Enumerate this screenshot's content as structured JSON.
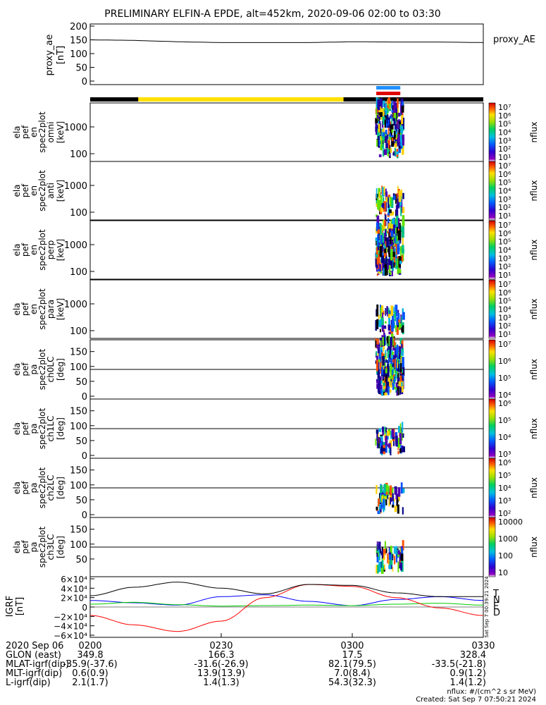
{
  "title": "PRELIMINARY ELFIN-A EPDE, alt=452km, 2020-09-06 02:00 to 03:30",
  "colors": {
    "bar_black": "#000000",
    "bar_yellow": "#ffe000",
    "bar_blue": "#1e90ff",
    "bar_red": "#e00000",
    "grf_N": "#0000ff",
    "grf_E": "#00cc00",
    "grf_D": "#ff0000",
    "grf_T": "#000000"
  },
  "ae_panel": {
    "ylabel": [
      "proxy_ae",
      "[nT]"
    ],
    "yticks": [
      "200",
      "150",
      "100",
      "50",
      "0"
    ],
    "legend": "proxy_AE"
  },
  "colorbars": {
    "label": "nflux",
    "energy_ticks": [
      "10⁷",
      "10⁶",
      "10⁵",
      "10⁴",
      "10³",
      "10²",
      "10¹"
    ],
    "ch0_ticks": [
      "10⁷",
      "10⁶",
      "10⁵",
      "10⁴"
    ],
    "ch1_ticks": [
      "10⁶",
      "10⁵",
      "10⁴",
      "10³"
    ],
    "ch2_ticks": [
      "10⁶",
      "10⁵",
      "10⁴",
      "10³",
      "10²"
    ],
    "ch3_ticks": [
      "10000",
      "1000",
      "100",
      "10"
    ]
  },
  "spec_panels": [
    {
      "ylabel": [
        "ela",
        "pef",
        "en",
        "spec2plot",
        "omni",
        "[keV]"
      ],
      "yticks": [
        "1000",
        "100"
      ]
    },
    {
      "ylabel": [
        "ela",
        "pef",
        "en",
        "spec2plot",
        "anti",
        "[keV]"
      ],
      "yticks": [
        "1000",
        "100"
      ]
    },
    {
      "ylabel": [
        "ela",
        "pef",
        "en",
        "spec2plot",
        "perp",
        "[keV]"
      ],
      "yticks": [
        "1000",
        "100"
      ]
    },
    {
      "ylabel": [
        "ela",
        "pef",
        "en",
        "spec2plot",
        "para",
        "[keV]"
      ],
      "yticks": [
        "1000",
        "100"
      ]
    }
  ],
  "pa_panels": [
    {
      "ylabel": [
        "ela",
        "pef",
        "pa",
        "spec2plot",
        "ch0LC",
        "[deg]"
      ],
      "yticks": [
        "150",
        "100",
        "50",
        "0"
      ]
    },
    {
      "ylabel": [
        "ela",
        "pef",
        "pa",
        "spec2plot",
        "ch1LC",
        "[deg]"
      ],
      "yticks": [
        "150",
        "100",
        "50",
        "0"
      ]
    },
    {
      "ylabel": [
        "ela",
        "pef",
        "pa",
        "spec2plot",
        "ch2LC",
        "[deg]"
      ],
      "yticks": [
        "150",
        "100",
        "50",
        "0"
      ]
    },
    {
      "ylabel": [
        "ela",
        "pef",
        "pa",
        "spec2plot",
        "ch3LC",
        "[deg]"
      ],
      "yticks": [
        "150",
        "100",
        "50"
      ]
    }
  ],
  "grf_panel": {
    "ylabel": [
      "IGRF",
      "[nT]"
    ],
    "yticks": [
      "6×10⁴",
      "4×10⁴",
      "2×10⁴",
      "0",
      "−2×10⁴",
      "−4×10⁴",
      "−6×10⁴"
    ],
    "legend": [
      "T",
      "N",
      "E",
      "D"
    ],
    "side_text": "Sat Sep  7 00:39:21 2024"
  },
  "xaxis": {
    "date": "2020 Sep 06",
    "ticks": [
      "0200",
      "0230",
      "0300",
      "0330"
    ],
    "rows": [
      {
        "label": "GLON (east)",
        "values": [
          "349.8",
          "166.3",
          "17.5",
          "328.4"
        ]
      },
      {
        "label": "MLAT-igrf(dip)",
        "values": [
          "-35.9(-37.6)",
          "-31.6(-26.9)",
          "82.1(79.5)",
          "-33.5(-21.8)"
        ]
      },
      {
        "label": "MLT-igrf(dip)",
        "values": [
          "0.6(0.9)",
          "13.9(13.9)",
          "7.0(8.4)",
          "0.9(1.2)"
        ]
      },
      {
        "label": "L-igrf(dip)",
        "values": [
          "2.1(1.7)",
          "1.4(1.3)",
          "54.3(32.3)",
          "1.4(1.2)"
        ]
      }
    ]
  },
  "footer": {
    "units": "nflux: #/(cm^2 s sr MeV)",
    "created": "Created: Sat Sep  7 07:50:21 2024"
  },
  "chart_data": {
    "type": "line",
    "x_range": [
      "02:00",
      "03:30"
    ],
    "series": [
      {
        "name": "proxy_AE",
        "time_min": [
          0,
          10,
          20,
          30,
          40,
          50,
          60,
          70,
          80,
          90
        ],
        "values": [
          150,
          148,
          143,
          140,
          140,
          140,
          143,
          142,
          142,
          140
        ]
      },
      {
        "name": "N",
        "time_min": [
          0,
          10,
          20,
          30,
          40,
          50,
          60,
          70,
          80,
          90
        ],
        "values": [
          14000,
          9000,
          4000,
          22000,
          26000,
          12000,
          3000,
          16000,
          22000,
          14000
        ]
      },
      {
        "name": "E",
        "time_min": [
          0,
          10,
          20,
          30,
          40,
          50,
          60,
          70,
          80,
          90
        ],
        "values": [
          6000,
          10000,
          5000,
          2000,
          3000,
          4000,
          3000,
          6000,
          8000,
          4000
        ]
      },
      {
        "name": "D",
        "time_min": [
          0,
          10,
          20,
          30,
          40,
          50,
          60,
          70,
          80,
          90
        ],
        "values": [
          -18000,
          -38000,
          -52000,
          -30000,
          20000,
          48000,
          44000,
          20000,
          -2000,
          -18000
        ]
      },
      {
        "name": "T",
        "time_min": [
          0,
          10,
          20,
          30,
          40,
          50,
          60,
          70,
          80,
          90
        ],
        "values": [
          24000,
          42000,
          53000,
          40000,
          28000,
          48000,
          46000,
          30000,
          22000,
          22000
        ]
      }
    ],
    "ae_ylim": [
      0,
      200
    ],
    "grf_ylim": [
      -60000,
      60000
    ],
    "science_zone_min": [
      65.5,
      71
    ]
  }
}
